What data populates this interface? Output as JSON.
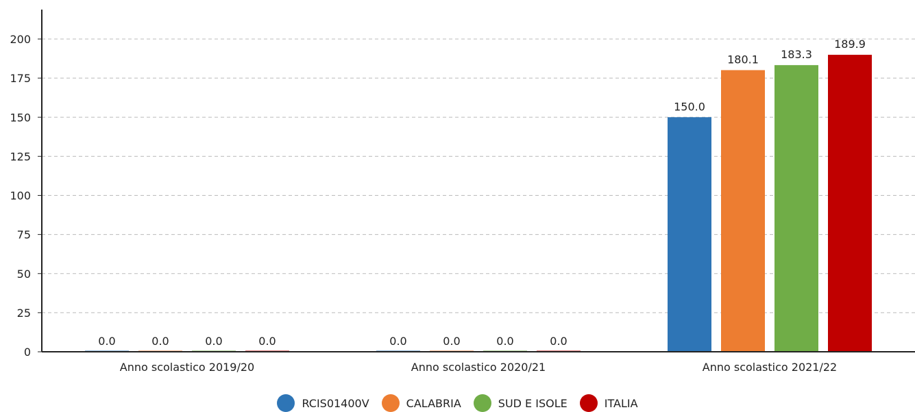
{
  "chart_data": {
    "type": "bar",
    "title": "",
    "xlabel": "",
    "ylabel": "",
    "ylim": [
      0,
      225
    ],
    "yticks": [
      0,
      25,
      50,
      75,
      100,
      125,
      150,
      175,
      200
    ],
    "grid": true,
    "legend_position": "bottom-center",
    "categories": [
      "Anno scolastico 2019/20",
      "Anno scolastico 2020/21",
      "Anno scolastico 2021/22"
    ],
    "series": [
      {
        "name": "RCIS01400V",
        "color": "#2e75b6",
        "values": [
          0.0,
          0.0,
          150.0
        ],
        "labels": [
          "0.0",
          "0.0",
          "150.0"
        ]
      },
      {
        "name": "CALABRIA",
        "color": "#ed7d31",
        "values": [
          0.0,
          0.0,
          180.1
        ],
        "labels": [
          "0.0",
          "0.0",
          "180.1"
        ]
      },
      {
        "name": "SUD E ISOLE",
        "color": "#70ad47",
        "values": [
          0.0,
          0.0,
          183.3
        ],
        "labels": [
          "0.0",
          "0.0",
          "183.3"
        ]
      },
      {
        "name": "ITALIA",
        "color": "#c00000",
        "values": [
          0.0,
          0.0,
          189.9
        ],
        "labels": [
          "0.0",
          "0.0",
          "189.9"
        ]
      }
    ]
  }
}
